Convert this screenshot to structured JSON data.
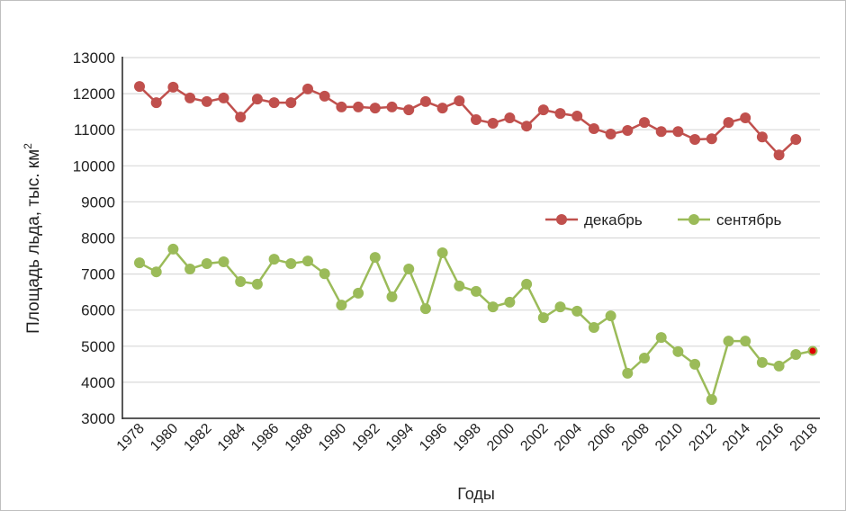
{
  "chart_data": {
    "type": "line",
    "title": "",
    "xlabel": "Годы",
    "ylabel": "Площадь льда, тыс. км",
    "ylabel_superscript": "2",
    "ylim": [
      3000,
      13000
    ],
    "yticks": [
      3000,
      4000,
      5000,
      6000,
      7000,
      8000,
      9000,
      10000,
      11000,
      12000,
      13000
    ],
    "xlim": [
      1978,
      2018
    ],
    "xticks": [
      1978,
      1980,
      1982,
      1984,
      1986,
      1988,
      1990,
      1992,
      1994,
      1996,
      1998,
      2000,
      2002,
      2004,
      2006,
      2008,
      2010,
      2012,
      2014,
      2016,
      2018
    ],
    "grid": true,
    "legend_position": "center-right",
    "series": [
      {
        "name": "декабрь",
        "color": "#c0504d",
        "x": [
          1978,
          1979,
          1980,
          1981,
          1982,
          1983,
          1984,
          1985,
          1986,
          1987,
          1988,
          1989,
          1990,
          1991,
          1992,
          1993,
          1994,
          1995,
          1996,
          1997,
          1998,
          1999,
          2000,
          2001,
          2002,
          2003,
          2004,
          2005,
          2006,
          2007,
          2008,
          2009,
          2010,
          2011,
          2012,
          2013,
          2014,
          2015,
          2016,
          2017
        ],
        "values": [
          12200,
          11750,
          12180,
          11880,
          11780,
          11880,
          11350,
          11850,
          11750,
          11750,
          12130,
          11930,
          11630,
          11630,
          11600,
          11630,
          11550,
          11780,
          11600,
          11800,
          11280,
          11180,
          11330,
          11100,
          11550,
          11450,
          11380,
          11030,
          10880,
          10980,
          11200,
          10950,
          10950,
          10730,
          10750,
          11200,
          11330,
          10800,
          10300,
          10730
        ]
      },
      {
        "name": "сентябрь",
        "color": "#9bbb59",
        "highlight_last_color": "#e00000",
        "x": [
          1978,
          1979,
          1980,
          1981,
          1982,
          1983,
          1984,
          1985,
          1986,
          1987,
          1988,
          1989,
          1990,
          1991,
          1992,
          1993,
          1994,
          1995,
          1996,
          1997,
          1998,
          1999,
          2000,
          2001,
          2002,
          2003,
          2004,
          2005,
          2006,
          2007,
          2008,
          2009,
          2010,
          2011,
          2012,
          2013,
          2014,
          2015,
          2016,
          2017,
          2018
        ],
        "values": [
          7310,
          7060,
          7690,
          7140,
          7290,
          7340,
          6790,
          6720,
          7410,
          7290,
          7360,
          7010,
          6140,
          6470,
          7460,
          6370,
          7140,
          6040,
          7590,
          6670,
          6520,
          6090,
          6220,
          6720,
          5790,
          6090,
          5970,
          5520,
          5840,
          4250,
          4670,
          5240,
          4850,
          4500,
          3520,
          5140,
          5140,
          4550,
          4450,
          4770,
          4870
        ]
      }
    ]
  }
}
